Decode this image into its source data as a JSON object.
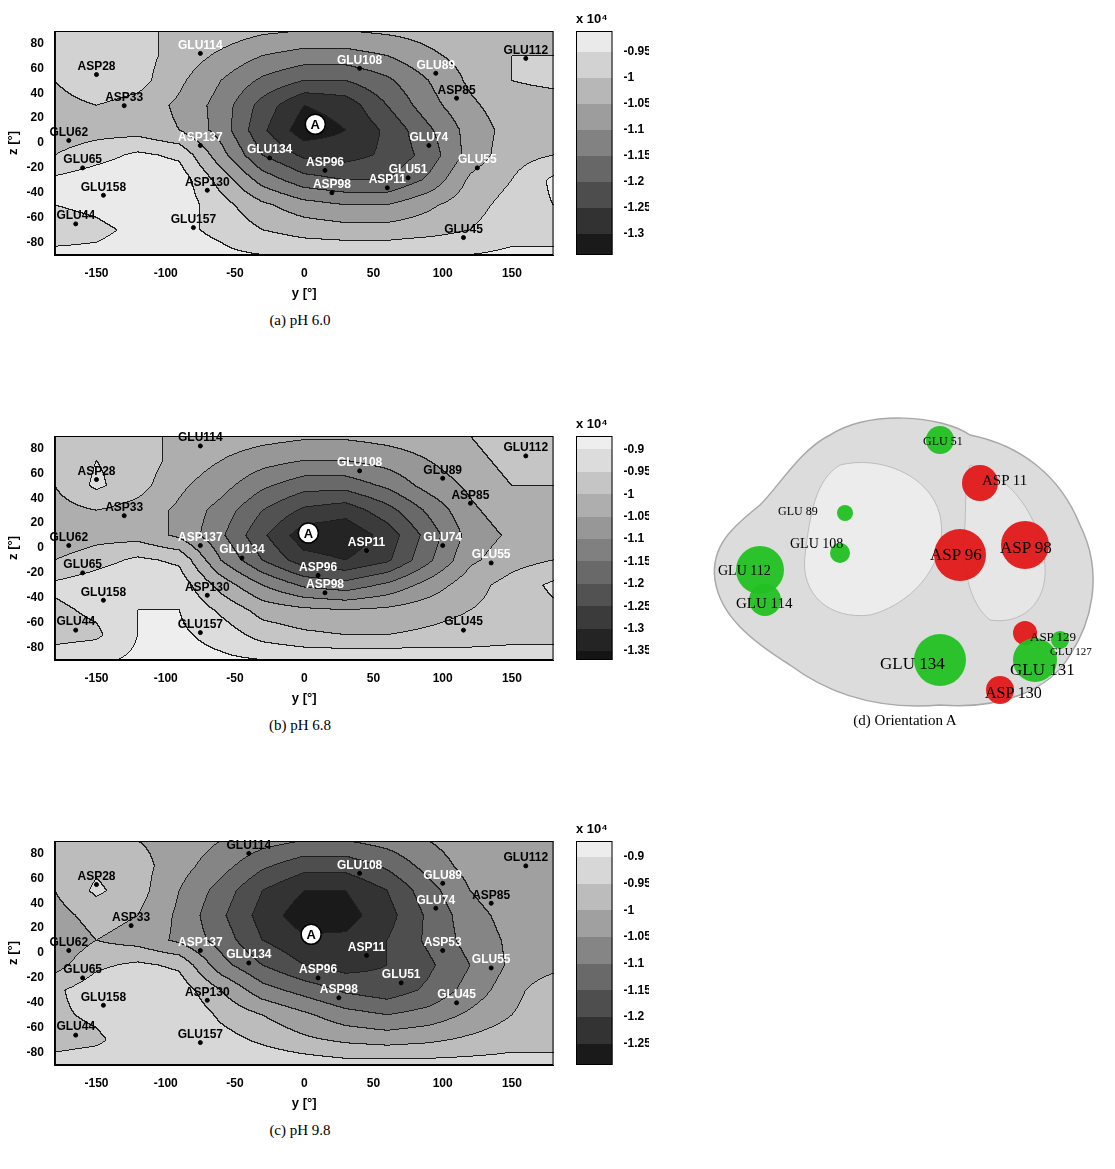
{
  "chart_data": [
    {
      "type": "contour",
      "title": "(a) pH 6.0",
      "x_label": "y [°]",
      "y_label": "z [°]",
      "xlim": [
        -180,
        180
      ],
      "xticks": [
        -150,
        -100,
        -50,
        0,
        50,
        100,
        150
      ],
      "ylim": [
        -90,
        90
      ],
      "yticks": [
        -80,
        -60,
        -40,
        -20,
        0,
        20,
        40,
        60,
        80
      ],
      "grid": false,
      "grid_x": [
        -180,
        -150,
        -120,
        -90,
        -60,
        -30,
        0,
        30,
        60,
        90,
        120,
        150,
        180
      ],
      "grid_y": [
        90,
        70,
        50,
        30,
        10,
        -10,
        -30,
        -50,
        -70,
        -90
      ],
      "cells": [
        [
          -1.0,
          -1.0,
          -1.0,
          -1.0,
          -1.02,
          -1.04,
          -1.05,
          -1.05,
          -1.04,
          -1.03,
          -1.02,
          -1.0,
          -1.0
        ],
        [
          -1.0,
          -0.97,
          -0.98,
          -1.02,
          -1.06,
          -1.1,
          -1.12,
          -1.12,
          -1.1,
          -1.06,
          -1.03,
          -1.0,
          -1.0
        ],
        [
          -1.0,
          -0.96,
          -0.98,
          -1.04,
          -1.1,
          -1.16,
          -1.2,
          -1.2,
          -1.16,
          -1.1,
          -1.04,
          -1.0,
          -0.99
        ],
        [
          -1.02,
          -1.0,
          -1.02,
          -1.06,
          -1.12,
          -1.22,
          -1.3,
          -1.28,
          -1.2,
          -1.12,
          -1.06,
          -1.02,
          -1.02
        ],
        [
          -1.03,
          -1.02,
          -1.02,
          -1.05,
          -1.12,
          -1.24,
          -1.33,
          -1.3,
          -1.24,
          -1.16,
          -1.08,
          -1.03,
          -1.03
        ],
        [
          -1.0,
          -0.97,
          -0.94,
          -0.96,
          -1.08,
          -1.2,
          -1.26,
          -1.27,
          -1.24,
          -1.18,
          -1.08,
          -1.02,
          -1.0
        ],
        [
          -0.94,
          -0.92,
          -0.91,
          -0.92,
          -1.02,
          -1.12,
          -1.18,
          -1.2,
          -1.2,
          -1.14,
          -1.04,
          -1.0,
          -0.94
        ],
        [
          -0.95,
          -0.94,
          -0.92,
          -0.92,
          -0.98,
          -1.04,
          -1.08,
          -1.1,
          -1.1,
          -1.06,
          -1.02,
          -0.98,
          -0.95
        ],
        [
          -0.97,
          -0.96,
          -0.94,
          -0.94,
          -0.96,
          -1.0,
          -1.02,
          -1.03,
          -1.03,
          -1.02,
          -1.0,
          -0.97,
          -0.97
        ],
        [
          -0.94,
          -0.94,
          -0.93,
          -0.93,
          -0.94,
          -0.95,
          -0.96,
          -0.96,
          -0.96,
          -0.95,
          -0.95,
          -0.94,
          -0.94
        ]
      ],
      "colorbar": {
        "label": "x 10⁴",
        "range": [
          -1.34,
          -0.91
        ],
        "ticks": [
          -0.95,
          -1,
          -1.05,
          -1.1,
          -1.15,
          -1.2,
          -1.25,
          -1.3
        ]
      },
      "point_label": {
        "text": "A",
        "x": 8,
        "y": 15
      },
      "labels": [
        {
          "text": "GLU114",
          "x": -75,
          "y": 72,
          "color": "white"
        },
        {
          "text": "ASP28",
          "x": -150,
          "y": 55,
          "color": "black"
        },
        {
          "text": "GLU108",
          "x": 40,
          "y": 60,
          "color": "white"
        },
        {
          "text": "GLU89",
          "x": 95,
          "y": 56,
          "color": "white"
        },
        {
          "text": "GLU112",
          "x": 160,
          "y": 68,
          "color": "black"
        },
        {
          "text": "ASP33",
          "x": -130,
          "y": 30,
          "color": "black"
        },
        {
          "text": "ASP85",
          "x": 110,
          "y": 36,
          "color": "black"
        },
        {
          "text": "GLU62",
          "x": -170,
          "y": 2,
          "color": "black"
        },
        {
          "text": "ASP137",
          "x": -75,
          "y": -2,
          "color": "white"
        },
        {
          "text": "GLU134",
          "x": -25,
          "y": -12,
          "color": "white"
        },
        {
          "text": "GLU74",
          "x": 90,
          "y": -2,
          "color": "white"
        },
        {
          "text": "GLU65",
          "x": -160,
          "y": -20,
          "color": "black"
        },
        {
          "text": "ASP96",
          "x": 15,
          "y": -22,
          "color": "white"
        },
        {
          "text": "GLU51",
          "x": 75,
          "y": -28,
          "color": "white"
        },
        {
          "text": "GLU55",
          "x": 125,
          "y": -20,
          "color": "white"
        },
        {
          "text": "ASP130",
          "x": -70,
          "y": -38,
          "color": "black"
        },
        {
          "text": "ASP98",
          "x": 20,
          "y": -40,
          "color": "white"
        },
        {
          "text": "ASP11",
          "x": 60,
          "y": -36,
          "color": "white"
        },
        {
          "text": "GLU158",
          "x": -145,
          "y": -42,
          "color": "black"
        },
        {
          "text": "GLU157",
          "x": -80,
          "y": -68,
          "color": "black"
        },
        {
          "text": "GLU44",
          "x": -165,
          "y": -65,
          "color": "black"
        },
        {
          "text": "GLU45",
          "x": 115,
          "y": -76,
          "color": "black"
        }
      ]
    },
    {
      "type": "contour",
      "title": "(b) pH 6.8",
      "x_label": "y [°]",
      "y_label": "z [°]",
      "xlim": [
        -180,
        180
      ],
      "xticks": [
        -150,
        -100,
        -50,
        0,
        50,
        100,
        150
      ],
      "ylim": [
        -90,
        90
      ],
      "yticks": [
        -80,
        -60,
        -40,
        -20,
        0,
        20,
        40,
        60,
        80
      ],
      "grid": false,
      "grid_x": [
        -180,
        -150,
        -120,
        -90,
        -60,
        -30,
        0,
        30,
        60,
        90,
        120,
        150,
        180
      ],
      "grid_y": [
        90,
        70,
        50,
        30,
        10,
        -10,
        -30,
        -50,
        -70,
        -90
      ],
      "cells": [
        [
          -1.0,
          -1.0,
          -1.0,
          -1.0,
          -1.02,
          -1.03,
          -1.04,
          -1.04,
          -1.03,
          -1.02,
          -1.0,
          -0.96,
          -0.96
        ],
        [
          -1.0,
          -0.95,
          -0.97,
          -1.02,
          -1.05,
          -1.08,
          -1.1,
          -1.1,
          -1.08,
          -1.05,
          -1.02,
          -0.98,
          -0.98
        ],
        [
          -1.0,
          -0.94,
          -0.98,
          -1.04,
          -1.08,
          -1.14,
          -1.18,
          -1.18,
          -1.14,
          -1.08,
          -1.04,
          -1.0,
          -1.0
        ],
        [
          -1.02,
          -1.0,
          -1.02,
          -1.06,
          -1.12,
          -1.2,
          -1.26,
          -1.28,
          -1.22,
          -1.14,
          -1.06,
          -1.02,
          -1.02
        ],
        [
          -1.04,
          -1.02,
          -1.02,
          -1.06,
          -1.14,
          -1.24,
          -1.33,
          -1.34,
          -1.28,
          -1.18,
          -1.08,
          -1.04,
          -1.04
        ],
        [
          -1.0,
          -0.97,
          -0.94,
          -0.96,
          -1.1,
          -1.2,
          -1.28,
          -1.3,
          -1.26,
          -1.16,
          -1.06,
          -1.02,
          -1.0
        ],
        [
          -0.94,
          -0.92,
          -0.9,
          -0.92,
          -1.02,
          -1.1,
          -1.16,
          -1.18,
          -1.14,
          -1.08,
          -1.02,
          -0.98,
          -0.94
        ],
        [
          -0.96,
          -0.94,
          -0.9,
          -0.9,
          -0.96,
          -1.02,
          -1.04,
          -1.05,
          -1.04,
          -1.02,
          -1.0,
          -0.98,
          -0.96
        ],
        [
          -0.97,
          -0.96,
          -0.9,
          -0.89,
          -0.92,
          -0.97,
          -0.99,
          -1.0,
          -1.0,
          -0.99,
          -0.98,
          -0.97,
          -0.97
        ],
        [
          -0.92,
          -0.91,
          -0.89,
          -0.88,
          -0.89,
          -0.9,
          -0.91,
          -0.91,
          -0.91,
          -0.91,
          -0.92,
          -0.92,
          -0.92
        ]
      ],
      "colorbar": {
        "label": "x 10⁴",
        "range": [
          -1.37,
          -0.87
        ],
        "ticks": [
          -0.9,
          -0.95,
          -1,
          -1.05,
          -1.1,
          -1.15,
          -1.2,
          -1.25,
          -1.3,
          -1.35
        ]
      },
      "point_label": {
        "text": "A",
        "x": 3,
        "y": 12
      },
      "labels": [
        {
          "text": "GLU114",
          "x": -75,
          "y": 82,
          "color": "black"
        },
        {
          "text": "ASP28",
          "x": -150,
          "y": 55,
          "color": "black"
        },
        {
          "text": "GLU108",
          "x": 40,
          "y": 62,
          "color": "white"
        },
        {
          "text": "GLU89",
          "x": 100,
          "y": 56,
          "color": "black"
        },
        {
          "text": "GLU112",
          "x": 160,
          "y": 74,
          "color": "black"
        },
        {
          "text": "ASP33",
          "x": -130,
          "y": 26,
          "color": "black"
        },
        {
          "text": "ASP85",
          "x": 120,
          "y": 36,
          "color": "black"
        },
        {
          "text": "GLU62",
          "x": -170,
          "y": 2,
          "color": "black"
        },
        {
          "text": "ASP137",
          "x": -75,
          "y": 2,
          "color": "white"
        },
        {
          "text": "GLU134",
          "x": -45,
          "y": -8,
          "color": "white"
        },
        {
          "text": "ASP11",
          "x": 45,
          "y": -2,
          "color": "white"
        },
        {
          "text": "GLU74",
          "x": 100,
          "y": 2,
          "color": "white"
        },
        {
          "text": "GLU55",
          "x": 135,
          "y": -12,
          "color": "white"
        },
        {
          "text": "GLU65",
          "x": -160,
          "y": -20,
          "color": "black"
        },
        {
          "text": "ASP96",
          "x": 10,
          "y": -22,
          "color": "white"
        },
        {
          "text": "ASP130",
          "x": -70,
          "y": -38,
          "color": "black"
        },
        {
          "text": "ASP98",
          "x": 15,
          "y": -36,
          "color": "white"
        },
        {
          "text": "GLU158",
          "x": -145,
          "y": -42,
          "color": "black"
        },
        {
          "text": "GLU44",
          "x": -165,
          "y": -66,
          "color": "black"
        },
        {
          "text": "GLU157",
          "x": -75,
          "y": -68,
          "color": "black"
        },
        {
          "text": "GLU45",
          "x": 115,
          "y": -66,
          "color": "black"
        }
      ]
    },
    {
      "type": "contour",
      "title": "(c) pH 9.8",
      "x_label": "y [°]",
      "y_label": "z [°]",
      "xlim": [
        -180,
        180
      ],
      "xticks": [
        -150,
        -100,
        -50,
        0,
        50,
        100,
        150
      ],
      "ylim": [
        -90,
        90
      ],
      "yticks": [
        -80,
        -60,
        -40,
        -20,
        0,
        20,
        40,
        60,
        80
      ],
      "grid": false,
      "grid_x": [
        -180,
        -150,
        -120,
        -90,
        -60,
        -30,
        0,
        30,
        60,
        90,
        120,
        150,
        180
      ],
      "grid_y": [
        90,
        70,
        50,
        30,
        10,
        -10,
        -30,
        -50,
        -70,
        -90
      ],
      "cells": [
        [
          -1.0,
          -1.0,
          -1.0,
          -1.02,
          -1.05,
          -1.08,
          -1.1,
          -1.1,
          -1.08,
          -1.05,
          -1.02,
          -1.0,
          -1.0
        ],
        [
          -1.0,
          -0.96,
          -0.98,
          -1.03,
          -1.08,
          -1.14,
          -1.18,
          -1.18,
          -1.14,
          -1.08,
          -1.03,
          -1.0,
          -1.0
        ],
        [
          -1.0,
          -0.94,
          -0.98,
          -1.05,
          -1.12,
          -1.2,
          -1.25,
          -1.25,
          -1.2,
          -1.12,
          -1.05,
          -1.01,
          -1.0
        ],
        [
          -1.02,
          -0.98,
          -1.0,
          -1.06,
          -1.14,
          -1.22,
          -1.28,
          -1.27,
          -1.22,
          -1.14,
          -1.07,
          -1.03,
          -1.02
        ],
        [
          -1.04,
          -1.0,
          -1.02,
          -1.06,
          -1.12,
          -1.2,
          -1.24,
          -1.24,
          -1.2,
          -1.14,
          -1.08,
          -1.04,
          -1.04
        ],
        [
          -1.02,
          -0.96,
          -0.94,
          -0.96,
          -1.08,
          -1.15,
          -1.2,
          -1.22,
          -1.2,
          -1.16,
          -1.1,
          -1.04,
          -1.02
        ],
        [
          -0.96,
          -0.92,
          -0.9,
          -0.92,
          -1.0,
          -1.08,
          -1.12,
          -1.16,
          -1.18,
          -1.14,
          -1.08,
          -1.02,
          -0.96
        ],
        [
          -0.96,
          -0.94,
          -0.9,
          -0.9,
          -0.96,
          -1.0,
          -1.04,
          -1.08,
          -1.1,
          -1.08,
          -1.04,
          -1.0,
          -0.96
        ],
        [
          -0.97,
          -0.96,
          -0.92,
          -0.9,
          -0.93,
          -0.96,
          -0.99,
          -1.01,
          -1.02,
          -1.01,
          -0.99,
          -0.97,
          -0.97
        ],
        [
          -0.93,
          -0.92,
          -0.9,
          -0.9,
          -0.9,
          -0.91,
          -0.92,
          -0.93,
          -0.93,
          -0.93,
          -0.93,
          -0.93,
          -0.93
        ]
      ],
      "colorbar": {
        "label": "x 10⁴",
        "range": [
          -1.29,
          -0.87
        ],
        "ticks": [
          -0.9,
          -0.95,
          -1,
          -1.05,
          -1.1,
          -1.15,
          -1.2,
          -1.25
        ]
      },
      "point_label": {
        "text": "A",
        "x": 5,
        "y": 15
      },
      "labels": [
        {
          "text": "GLU114",
          "x": -40,
          "y": 80,
          "color": "black"
        },
        {
          "text": "GLU108",
          "x": 40,
          "y": 64,
          "color": "white"
        },
        {
          "text": "GLU112",
          "x": 160,
          "y": 70,
          "color": "black"
        },
        {
          "text": "GLU89",
          "x": 100,
          "y": 56,
          "color": "white"
        },
        {
          "text": "ASP28",
          "x": -150,
          "y": 55,
          "color": "black"
        },
        {
          "text": "ASP33",
          "x": -125,
          "y": 22,
          "color": "black"
        },
        {
          "text": "GLU74",
          "x": 95,
          "y": 36,
          "color": "white"
        },
        {
          "text": "ASP85",
          "x": 135,
          "y": 40,
          "color": "black"
        },
        {
          "text": "GLU62",
          "x": -170,
          "y": 2,
          "color": "black"
        },
        {
          "text": "ASP137",
          "x": -75,
          "y": 2,
          "color": "white"
        },
        {
          "text": "GLU134",
          "x": -40,
          "y": -8,
          "color": "white"
        },
        {
          "text": "ASP11",
          "x": 45,
          "y": -2,
          "color": "white"
        },
        {
          "text": "ASP53",
          "x": 100,
          "y": 2,
          "color": "white"
        },
        {
          "text": "GLU55",
          "x": 135,
          "y": -12,
          "color": "white"
        },
        {
          "text": "GLU65",
          "x": -160,
          "y": -20,
          "color": "black"
        },
        {
          "text": "ASP96",
          "x": 10,
          "y": -20,
          "color": "white"
        },
        {
          "text": "GLU51",
          "x": 70,
          "y": -24,
          "color": "white"
        },
        {
          "text": "ASP130",
          "x": -70,
          "y": -38,
          "color": "black"
        },
        {
          "text": "ASP98",
          "x": 25,
          "y": -36,
          "color": "white"
        },
        {
          "text": "GLU45",
          "x": 110,
          "y": -40,
          "color": "white"
        },
        {
          "text": "GLU158",
          "x": -145,
          "y": -42,
          "color": "black"
        },
        {
          "text": "GLU44",
          "x": -165,
          "y": -66,
          "color": "black"
        },
        {
          "text": "GLU157",
          "x": -75,
          "y": -72,
          "color": "black"
        }
      ]
    }
  ],
  "image_panel": {
    "caption": "(d) Orientation A",
    "labels": [
      {
        "text": "GLU 51",
        "color": "green"
      },
      {
        "text": "ASP 11",
        "color": "red"
      },
      {
        "text": "GLU 89",
        "color": "green"
      },
      {
        "text": "GLU 108",
        "color": "green"
      },
      {
        "text": "GLU 112",
        "color": "green"
      },
      {
        "text": "GLU 114",
        "color": "green"
      },
      {
        "text": "ASP 96",
        "color": "red"
      },
      {
        "text": "ASP 98",
        "color": "red"
      },
      {
        "text": "ASP 129",
        "color": "red"
      },
      {
        "text": "GLU 127",
        "color": "green"
      },
      {
        "text": "GLU 134",
        "color": "green"
      },
      {
        "text": "GLU 131",
        "color": "green"
      },
      {
        "text": "ASP 130",
        "color": "red"
      }
    ]
  }
}
